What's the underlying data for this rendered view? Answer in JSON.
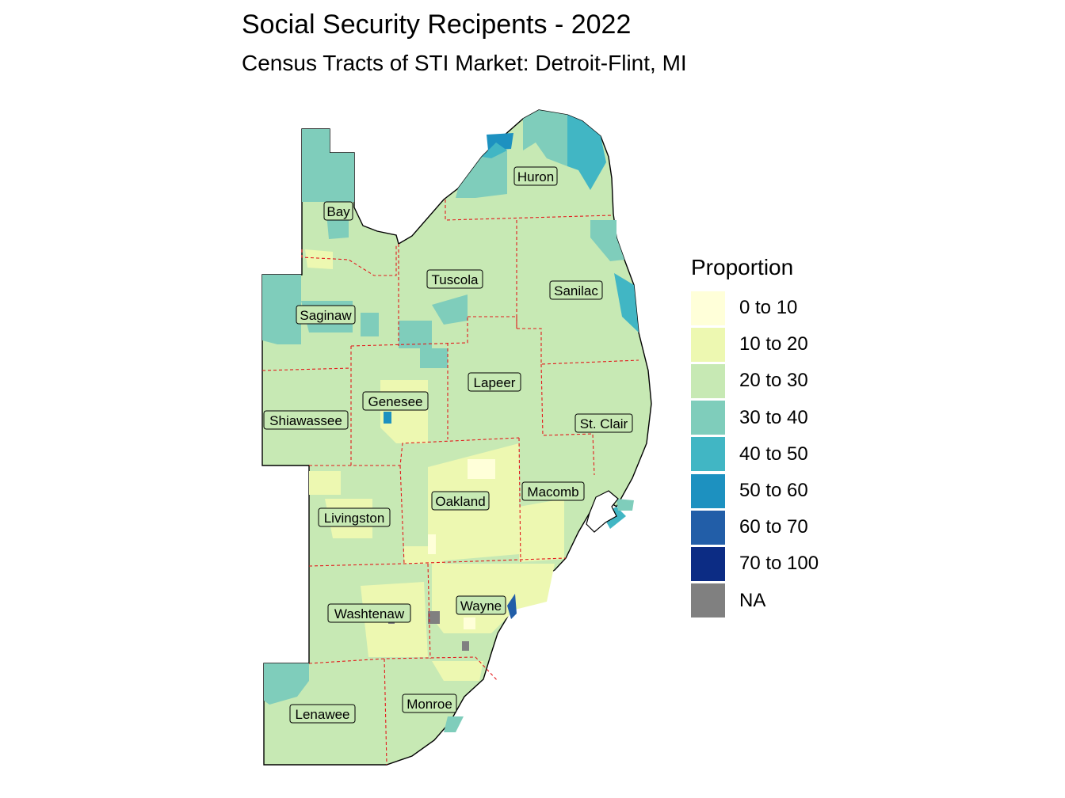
{
  "title": "Social Security Recipents - 2022",
  "subtitle": "Census Tracts of STI Market: Detroit-Flint, MI",
  "legend": {
    "title": "Proportion",
    "items": [
      {
        "label": "0 to 10",
        "color": "#ffffd9"
      },
      {
        "label": "10 to 20",
        "color": "#edf8b1"
      },
      {
        "label": "20 to 30",
        "color": "#c7e9b4"
      },
      {
        "label": "30 to 40",
        "color": "#7fcdbb"
      },
      {
        "label": "40 to 50",
        "color": "#41b6c4"
      },
      {
        "label": "50 to 60",
        "color": "#1d91c0"
      },
      {
        "label": "60 to 70",
        "color": "#225ea8"
      },
      {
        "label": "70 to 100",
        "color": "#0c2c84"
      },
      {
        "label": "NA",
        "color": "#808080"
      }
    ]
  },
  "counties": [
    {
      "name": "Huron"
    },
    {
      "name": "Bay"
    },
    {
      "name": "Tuscola"
    },
    {
      "name": "Sanilac"
    },
    {
      "name": "Saginaw"
    },
    {
      "name": "Lapeer"
    },
    {
      "name": "Genesee"
    },
    {
      "name": "St. Clair"
    },
    {
      "name": "Shiawassee"
    },
    {
      "name": "Macomb"
    },
    {
      "name": "Oakland"
    },
    {
      "name": "Livingston"
    },
    {
      "name": "Wayne"
    },
    {
      "name": "Washtenaw"
    },
    {
      "name": "Monroe"
    },
    {
      "name": "Lenawee"
    }
  ]
}
